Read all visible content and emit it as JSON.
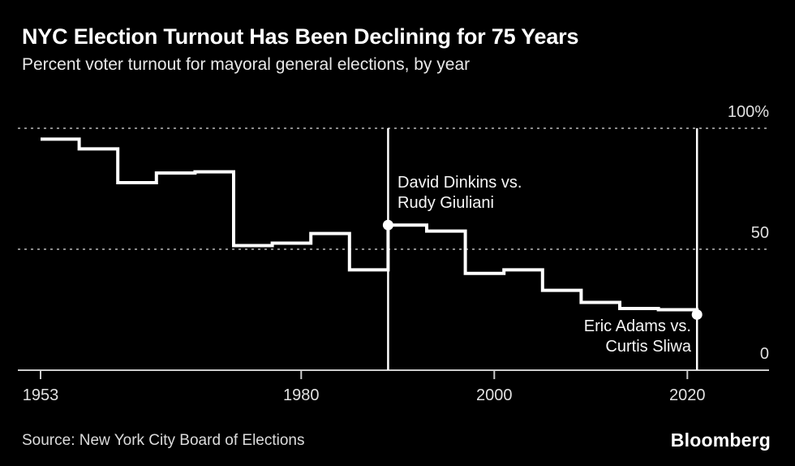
{
  "header": {
    "title": "NYC Election Turnout Has Been Declining for 75 Years",
    "subtitle": "Percent voter turnout for mayoral general elections, by year"
  },
  "chart_data": {
    "type": "line",
    "subtype": "step",
    "title": "NYC Election Turnout Has Been Declining for 75 Years",
    "subtitle": "Percent voter turnout for mayoral general elections, by year",
    "xlabel": "",
    "ylabel": "Percent voter turnout",
    "xlim": [
      1953,
      2021
    ],
    "ylim": [
      0,
      100
    ],
    "grid": "dotted horizontal at 50 and 100, solid baseline at 0",
    "years": [
      1953,
      1957,
      1961,
      1965,
      1969,
      1973,
      1977,
      1981,
      1985,
      1989,
      1993,
      1997,
      2001,
      2005,
      2009,
      2013,
      2017,
      2021
    ],
    "values": [
      95.5,
      91.5,
      77.5,
      81.5,
      82,
      51.5,
      52.5,
      56.5,
      41.5,
      60,
      57.5,
      40,
      41.5,
      33,
      28,
      25.5,
      25,
      23
    ],
    "x_ticks": [
      {
        "year": 1953,
        "label": "1953"
      },
      {
        "year": 1980,
        "label": "1980"
      },
      {
        "year": 2000,
        "label": "2000"
      },
      {
        "year": 2020,
        "label": "2020"
      }
    ],
    "y_ticks": [
      {
        "value": 100,
        "label": "100%",
        "style": "dotted"
      },
      {
        "value": 50,
        "label": "50",
        "style": "dotted"
      },
      {
        "value": 0,
        "label": "0",
        "style": "solid"
      }
    ],
    "markers": [
      {
        "year": 1989,
        "value": 60
      },
      {
        "year": 2021,
        "value": 23
      }
    ],
    "annotations": [
      {
        "year": 1989,
        "lines": [
          "David Dinkins vs.",
          "Rudy Giuliani"
        ],
        "align": "left"
      },
      {
        "year": 2021,
        "lines": [
          "Eric Adams vs.",
          "Curtis Sliwa"
        ],
        "align": "right"
      }
    ],
    "colors": {
      "background": "#000000",
      "line": "#ffffff",
      "grid_dotted": "#8c8c8c",
      "axis": "#cccccc",
      "tick_text": "#e0e0e0",
      "annotation_text": "#f7f7f7"
    }
  },
  "footer": {
    "source": "Source: New York City Board of Elections",
    "brand": "Bloomberg"
  }
}
